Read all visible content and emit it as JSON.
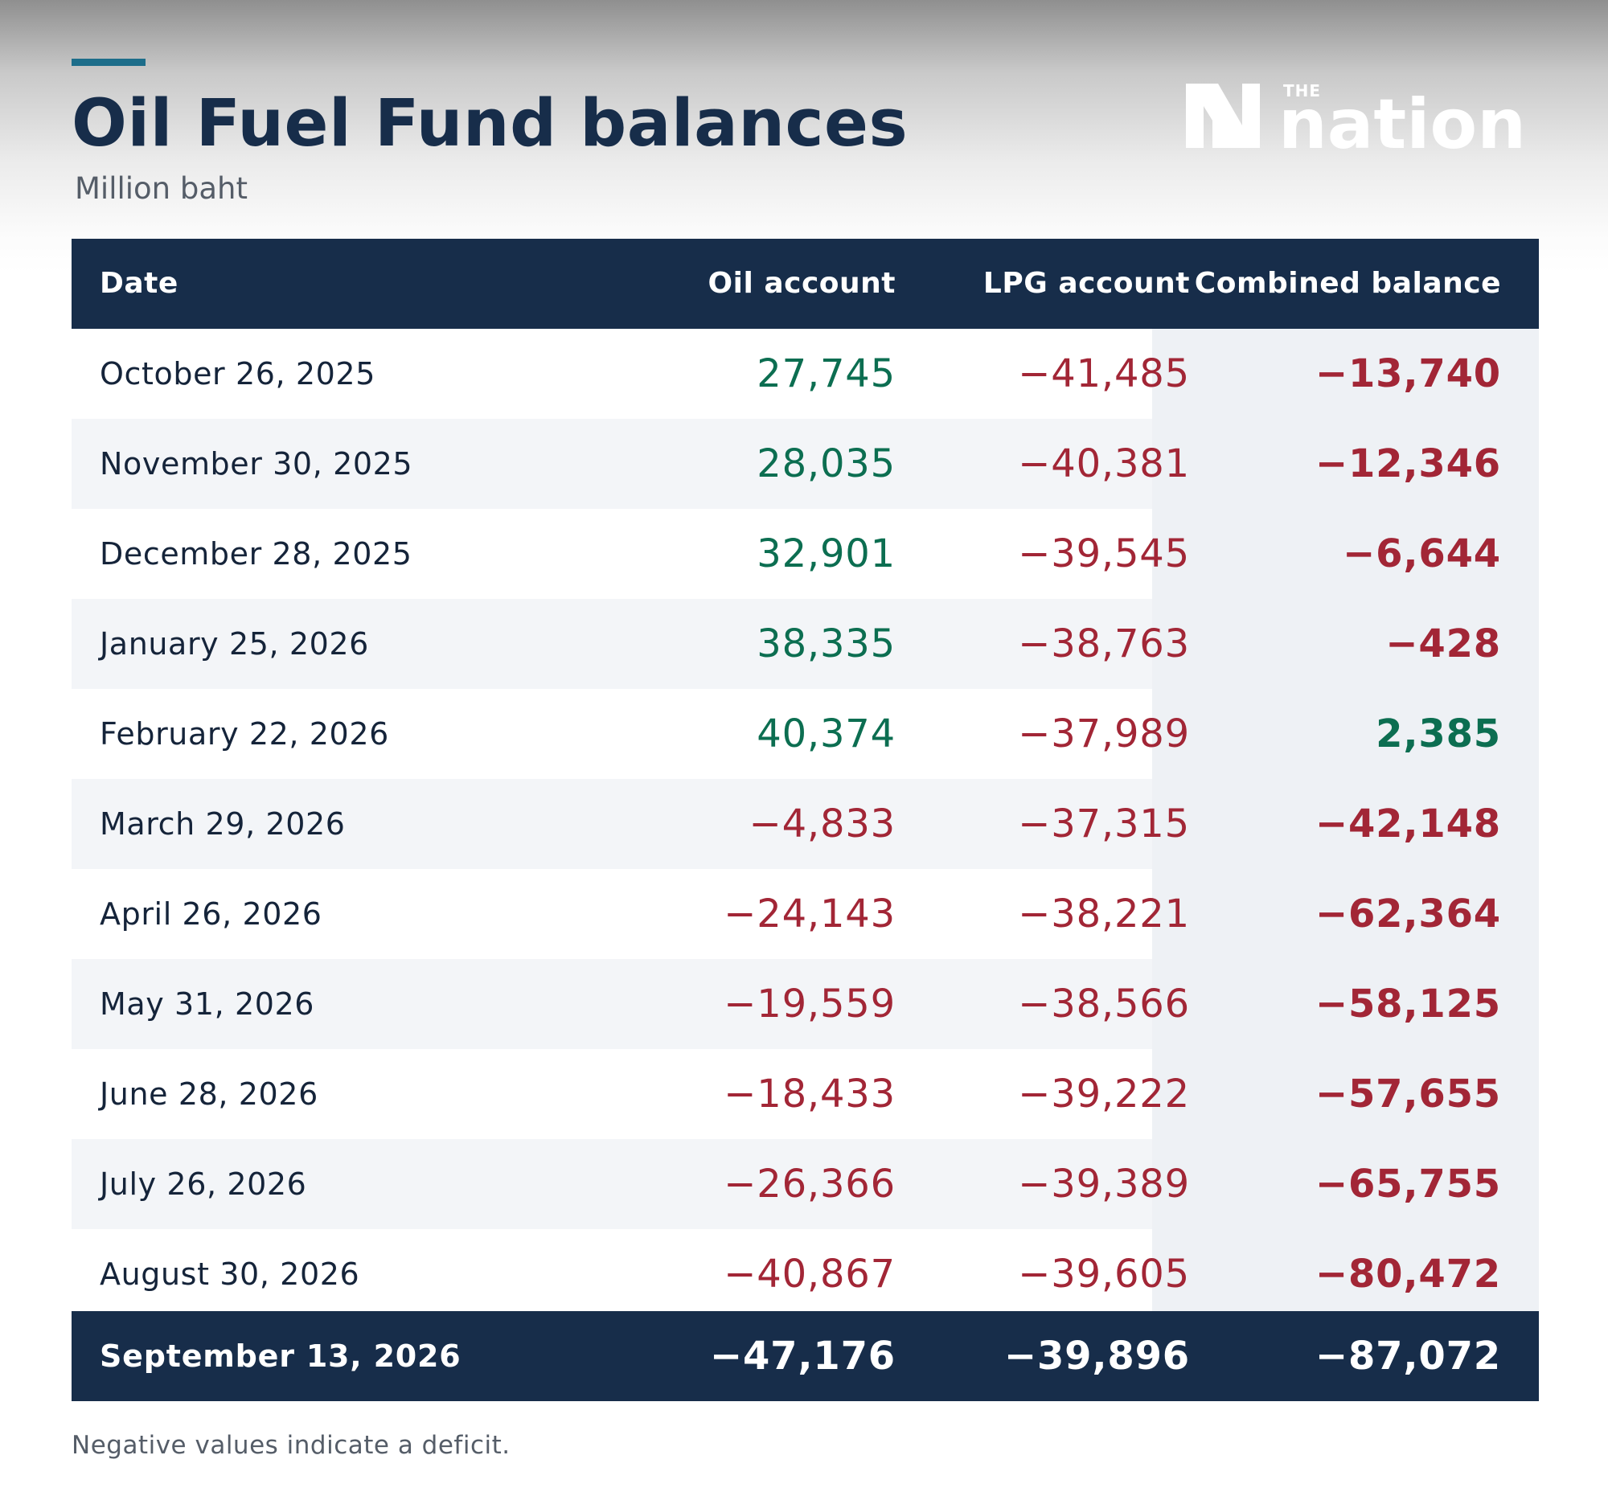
{
  "header": {
    "title": "Oil Fuel Fund balances",
    "subtitle": "Million baht",
    "logo": {
      "small_text": "THE",
      "wordmark": "nation",
      "icon": "nation-n-logo-icon"
    }
  },
  "colors": {
    "navy": "#172d4a",
    "accent_teal": "#1d6d8a",
    "positive_green": "#0c6e51",
    "negative_red": "#a22636",
    "row_stripe": "#f3f5f8",
    "combined_column_tint": "#eef1f5",
    "subtitle_gray": "#555d68"
  },
  "chart_data": {
    "type": "table",
    "title": "Oil Fuel Fund balances",
    "subtitle": "Million baht",
    "columns": [
      "Date",
      "Oil account",
      "LPG account",
      "Combined balance"
    ],
    "rows": [
      {
        "date": "October 26, 2025",
        "oil": 27745,
        "lpg": -41485,
        "combined": -13740
      },
      {
        "date": "November 30, 2025",
        "oil": 28035,
        "lpg": -40381,
        "combined": -12346
      },
      {
        "date": "December 28, 2025",
        "oil": 32901,
        "lpg": -39545,
        "combined": -6644
      },
      {
        "date": "January 25, 2026",
        "oil": 38335,
        "lpg": -38763,
        "combined": -428
      },
      {
        "date": "February 22, 2026",
        "oil": 40374,
        "lpg": -37989,
        "combined": 2385
      },
      {
        "date": "March 29, 2026",
        "oil": -4833,
        "lpg": -37315,
        "combined": -42148
      },
      {
        "date": "April 26, 2026",
        "oil": -24143,
        "lpg": -38221,
        "combined": -62364
      },
      {
        "date": "May 31, 2026",
        "oil": -19559,
        "lpg": -38566,
        "combined": -58125
      },
      {
        "date": "June 28, 2026",
        "oil": -18433,
        "lpg": -39222,
        "combined": -57655
      },
      {
        "date": "July 26, 2026",
        "oil": -26366,
        "lpg": -39389,
        "combined": -65755
      },
      {
        "date": "August 30, 2026",
        "oil": -40867,
        "lpg": -39605,
        "combined": -80472
      }
    ],
    "total_row": {
      "date": "September 13, 2026",
      "oil": -47176,
      "lpg": -39896,
      "combined": -87072
    },
    "footnote": "Negative values indicate a deficit."
  }
}
